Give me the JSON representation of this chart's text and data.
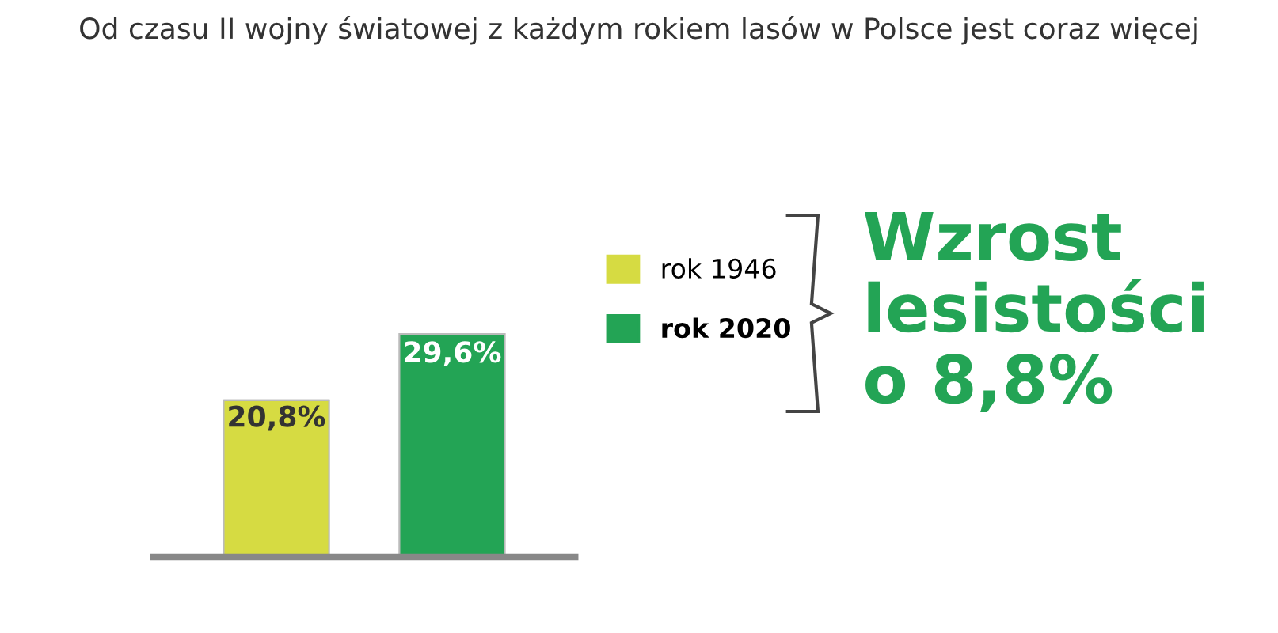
{
  "chart_data": {
    "type": "bar",
    "title": "Od czasu II wojny światowej z każdym rokiem lasów w Polsce jest coraz więcej",
    "categories": [
      null,
      null
    ],
    "series": [
      {
        "name": "rok 1946",
        "color": "#d6db42",
        "values": [
          20.8,
          null
        ],
        "value_labels": [
          "20,8%",
          null
        ]
      },
      {
        "name": "rok 2020",
        "color": "#23a455",
        "values": [
          null,
          29.6
        ],
        "value_labels": [
          null,
          "29,6%"
        ]
      }
    ],
    "stacked": true,
    "legend": "right",
    "grid": false,
    "annotations": [
      "Wzrost\nlesistości\no 8,8%"
    ]
  }
}
